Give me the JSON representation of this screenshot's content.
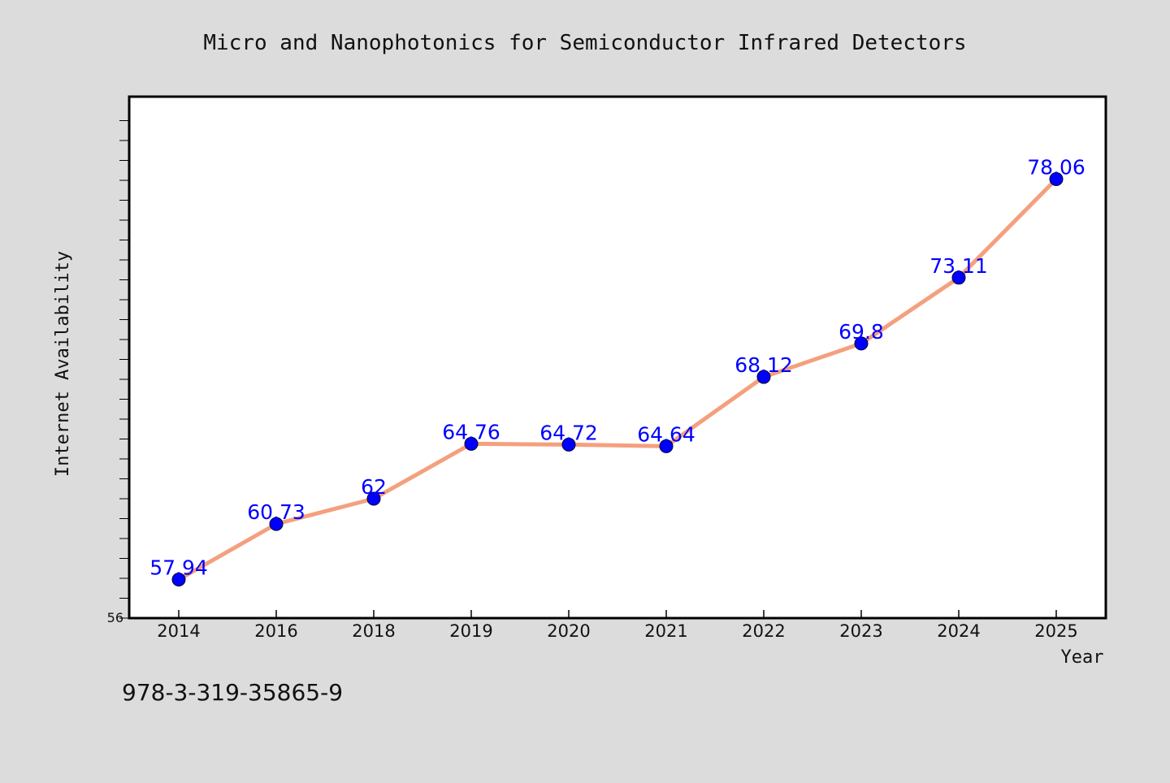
{
  "chart_data": {
    "type": "line",
    "title": "Micro and Nanophotonics for Semiconductor Infrared Detectors",
    "xlabel": "Year",
    "ylabel": "Internet Availability",
    "categories": [
      "2014",
      "2016",
      "2018",
      "2019",
      "2020",
      "2021",
      "2022",
      "2023",
      "2024",
      "2025"
    ],
    "values": [
      57.94,
      60.73,
      62,
      64.76,
      64.72,
      64.64,
      68.12,
      69.8,
      73.11,
      78.06
    ],
    "data_labels": [
      "57.94",
      "60.73",
      "62",
      "64.76",
      "64.72",
      "64.64",
      "68.12",
      "69.8",
      "73.11",
      "78.06"
    ],
    "ylim": [
      56,
      82
    ],
    "y_tick_labels": [
      "56"
    ],
    "grid": false,
    "legend": "none",
    "line_color": "#f4a07e",
    "marker_color": "#0000ff",
    "label_color": "#0000ff"
  },
  "footer_text": "978-3-319-35865-9"
}
